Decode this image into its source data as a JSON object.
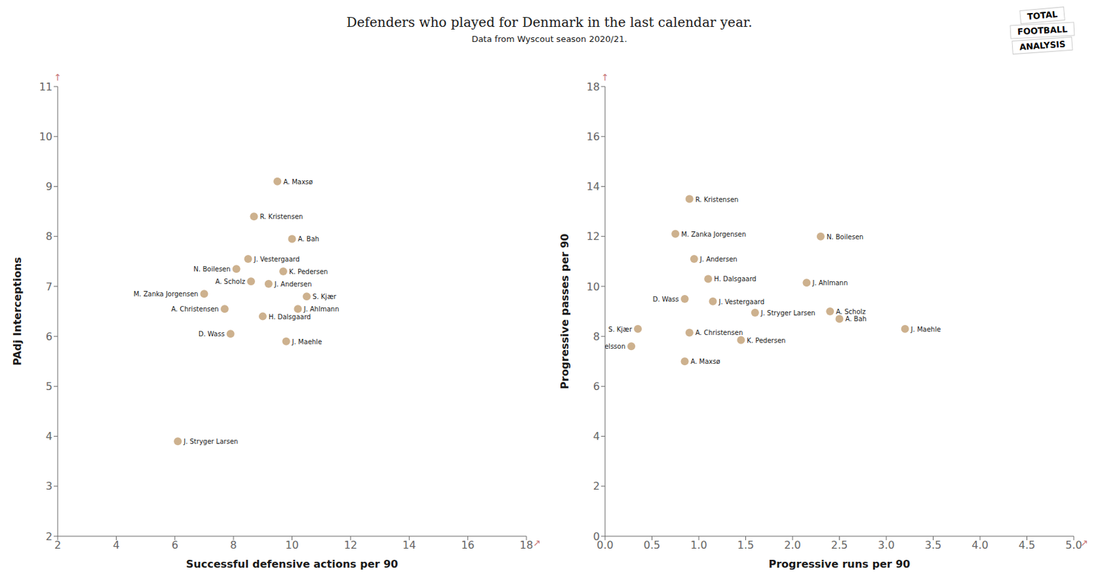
{
  "title": "Defenders who played for Denmark in the last calendar year.",
  "subtitle": "Data from Wyscout season 2020/21.",
  "annotations": [
    "TOTAL",
    "FOOTBALL",
    "ANALYSIS"
  ],
  "chart_data": [
    {
      "type": "scatter",
      "xlabel": "Successful defensive actions per 90",
      "ylabel": "PAdj Interceptions",
      "xlim": [
        2,
        18
      ],
      "ylim": [
        2,
        11
      ],
      "xticks": [
        2,
        4,
        6,
        8,
        10,
        12,
        14,
        16,
        18
      ],
      "yticks": [
        2,
        3,
        4,
        5,
        6,
        7,
        8,
        9,
        10,
        11
      ],
      "grid": false,
      "color": "#c8a882",
      "x": [
        9.5,
        8.7,
        10.0,
        8.5,
        8.1,
        9.7,
        8.6,
        9.2,
        7.0,
        10.5,
        7.7,
        10.2,
        9.0,
        7.9,
        9.8,
        6.1
      ],
      "values": [
        9.1,
        8.4,
        7.95,
        7.55,
        7.35,
        7.3,
        7.1,
        7.05,
        6.85,
        6.8,
        6.55,
        6.55,
        6.4,
        6.05,
        5.9,
        3.9
      ],
      "labels": [
        "A. Maxsø",
        "R. Kristensen",
        "A. Bah",
        "J. Vestergaard",
        "N. Boilesen",
        "K. Pedersen",
        "A. Scholz",
        "J. Andersen",
        "M. Zanka Jorgensen",
        "S. Kjær",
        "A. Christensen",
        "J. Ahlmann",
        "H. Dalsgaard",
        "D. Wass",
        "J. Maehle",
        "J. Stryger Larsen"
      ],
      "annotations": [
        {
          "text": "↗",
          "color": "#c87878"
        },
        {
          "text": "↑",
          "color": "#c87878"
        }
      ]
    },
    {
      "type": "scatter",
      "xlabel": "Progressive runs per 90",
      "ylabel": "Progressive passes per 90",
      "xlim": [
        0,
        5.0
      ],
      "ylim": [
        0,
        18
      ],
      "xticks": [
        {
          "value": 0,
          "label": "0.0"
        },
        0.5,
        {
          "value": 1,
          "label": "1.0"
        },
        1.5,
        {
          "value": 2,
          "label": "2.0"
        },
        2.5,
        {
          "value": 3,
          "label": "3.0"
        },
        3.5,
        {
          "value": 4,
          "label": "4.0"
        },
        4.5,
        {
          "value": 5,
          "label": "5.0"
        }
      ],
      "yticks": [
        0,
        2,
        4,
        6,
        8,
        10,
        12,
        14,
        16,
        18
      ],
      "grid": false,
      "color": "#c8a882",
      "x": [
        0.9,
        0.75,
        2.3,
        0.95,
        1.1,
        2.15,
        0.85,
        1.15,
        1.6,
        2.4,
        0.35,
        0.9,
        2.5,
        0.28,
        1.45,
        0.85,
        3.2
      ],
      "values": [
        13.5,
        12.1,
        12.0,
        11.1,
        10.3,
        10.15,
        9.5,
        9.4,
        8.95,
        9.0,
        8.3,
        8.15,
        8.7,
        7.6,
        7.85,
        7.0,
        8.3
      ],
      "labels": [
        "R. Kristensen",
        "M. Zanka Jorgensen",
        "N. Boilesen",
        "J. Andersen",
        "H. Dalsgaard",
        "J. Ahlmann",
        "D. Wass",
        "J. Vestergaard",
        "J. Stryger Larsen",
        "A. Scholz",
        "S. Kjær",
        "A. Christensen",
        "A. Bah",
        "V. Nelsson",
        "K. Pedersen",
        "A. Maxsø",
        "J. Maehle"
      ],
      "annotations": [
        {
          "text": "↗",
          "color": "#c87878"
        },
        {
          "text": "↑",
          "color": "#c87878"
        }
      ]
    }
  ]
}
